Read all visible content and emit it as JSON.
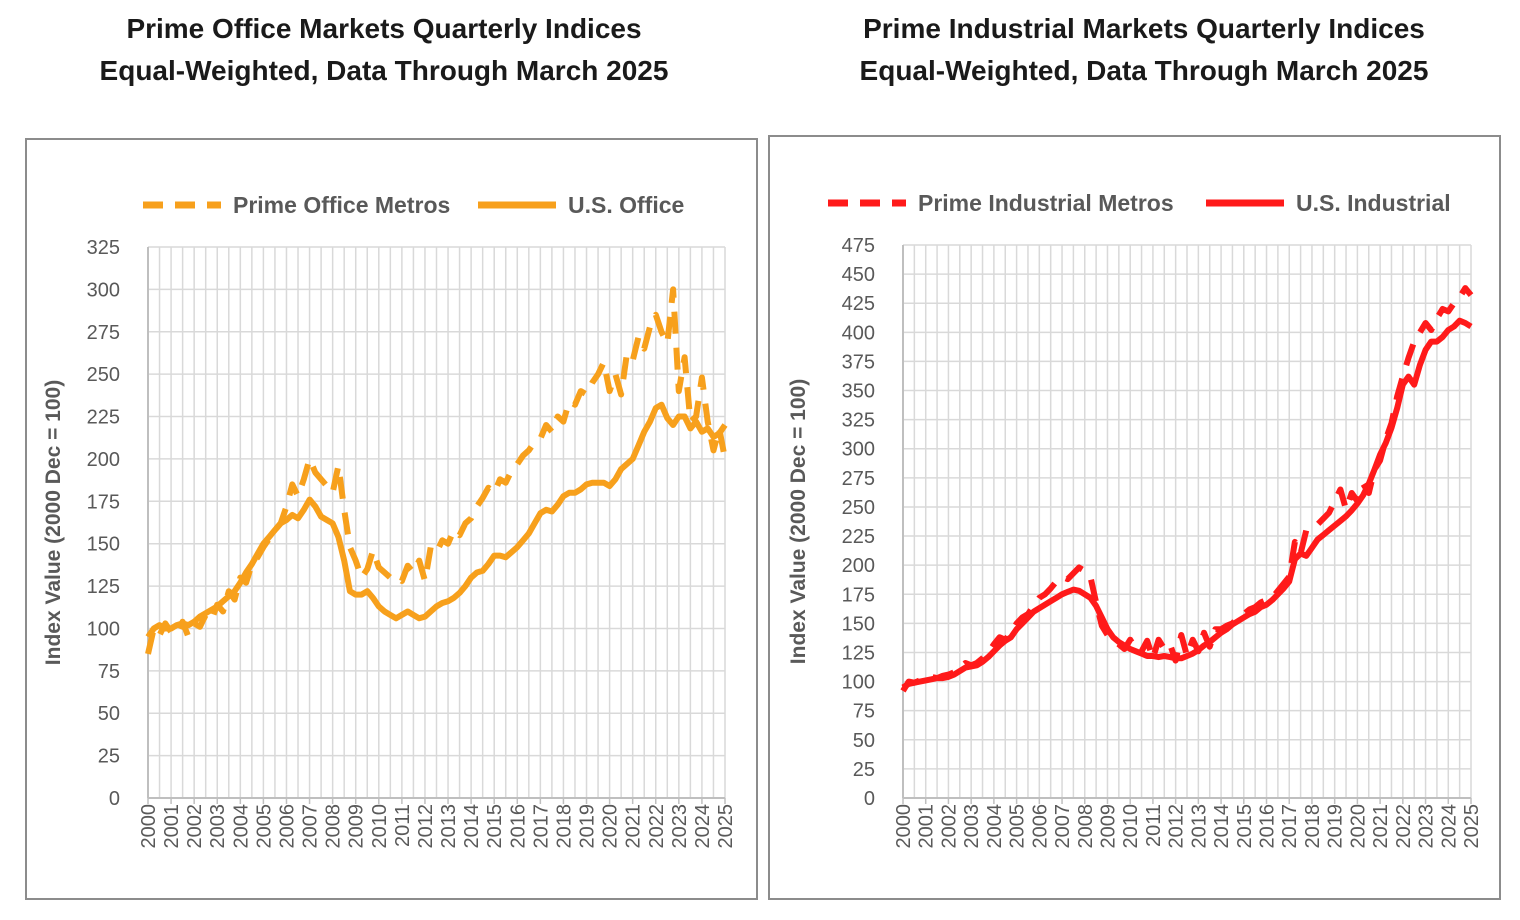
{
  "chart_data": [
    {
      "type": "line",
      "title": "Prime Office Markets Quarterly Indices",
      "subtitle": "Equal-Weighted, Data Through March 2025",
      "xlabel": "",
      "ylabel": "Index Value (2000 Dec = 100)",
      "ylim": [
        0,
        325
      ],
      "ytick_step": 25,
      "xlim": [
        2000,
        2025
      ],
      "x_ticks": [
        "2000",
        "2001",
        "2002",
        "2003",
        "2004",
        "2005",
        "2006",
        "2007",
        "2008",
        "2009",
        "2010",
        "2011",
        "2012",
        "2013",
        "2014",
        "2015",
        "2016",
        "2017",
        "2018",
        "2019",
        "2020",
        "2021",
        "2022",
        "2023",
        "2024",
        "2025"
      ],
      "grid": true,
      "legend_position": "top",
      "series": [
        {
          "name": "Prime Office Metros",
          "color": "#F7A01C",
          "style": "dashed",
          "x": [
            2000.0,
            2000.25,
            2000.5,
            2000.75,
            2001.0,
            2001.25,
            2001.5,
            2001.75,
            2002.0,
            2002.25,
            2002.5,
            2002.75,
            2003.0,
            2003.25,
            2003.5,
            2003.75,
            2004.0,
            2004.25,
            2004.5,
            2004.75,
            2005.0,
            2005.25,
            2005.5,
            2005.75,
            2006.0,
            2006.25,
            2006.5,
            2006.75,
            2007.0,
            2007.25,
            2007.5,
            2007.75,
            2008.0,
            2008.25,
            2008.5,
            2008.75,
            2009.0,
            2009.25,
            2009.5,
            2009.75,
            2010.0,
            2010.25,
            2010.5,
            2010.75,
            2011.0,
            2011.25,
            2011.5,
            2011.75,
            2012.0,
            2012.25,
            2012.5,
            2012.75,
            2013.0,
            2013.25,
            2013.5,
            2013.75,
            2014.0,
            2014.25,
            2014.5,
            2014.75,
            2015.0,
            2015.25,
            2015.5,
            2015.75,
            2016.0,
            2016.25,
            2016.5,
            2016.75,
            2017.0,
            2017.25,
            2017.5,
            2017.75,
            2018.0,
            2018.25,
            2018.5,
            2018.75,
            2019.0,
            2019.25,
            2019.5,
            2019.75,
            2020.0,
            2020.25,
            2020.5,
            2020.75,
            2021.0,
            2021.25,
            2021.5,
            2021.75,
            2022.0,
            2022.25,
            2022.5,
            2022.75,
            2023.0,
            2023.25,
            2023.5,
            2023.75,
            2024.0,
            2024.25,
            2024.5,
            2024.75,
            2025.0
          ],
          "values": [
            85,
            100,
            96,
            103,
            98,
            96,
            104,
            95,
            103,
            101,
            108,
            105,
            114,
            110,
            122,
            117,
            130,
            127,
            138,
            142,
            148,
            153,
            158,
            162,
            172,
            185,
            178,
            188,
            200,
            192,
            188,
            184,
            180,
            196,
            170,
            148,
            140,
            130,
            135,
            146,
            136,
            133,
            130,
            131,
            128,
            137,
            133,
            140,
            128,
            148,
            145,
            152,
            150,
            158,
            155,
            162,
            165,
            172,
            177,
            183,
            180,
            188,
            186,
            193,
            197,
            202,
            205,
            210,
            212,
            220,
            216,
            225,
            222,
            234,
            232,
            240,
            238,
            245,
            250,
            257,
            240,
            250,
            238,
            262,
            258,
            272,
            265,
            278,
            285,
            275,
            268,
            300,
            240,
            260,
            222,
            225,
            248,
            222,
            205,
            218,
            200
          ]
        },
        {
          "name": "U.S. Office",
          "color": "#F7A01C",
          "style": "solid",
          "x": [
            2000.0,
            2000.25,
            2000.5,
            2000.75,
            2001.0,
            2001.25,
            2001.5,
            2001.75,
            2002.0,
            2002.25,
            2002.5,
            2002.75,
            2003.0,
            2003.25,
            2003.5,
            2003.75,
            2004.0,
            2004.25,
            2004.5,
            2004.75,
            2005.0,
            2005.25,
            2005.5,
            2005.75,
            2006.0,
            2006.25,
            2006.5,
            2006.75,
            2007.0,
            2007.25,
            2007.5,
            2007.75,
            2008.0,
            2008.25,
            2008.5,
            2008.75,
            2009.0,
            2009.25,
            2009.5,
            2009.75,
            2010.0,
            2010.25,
            2010.5,
            2010.75,
            2011.0,
            2011.25,
            2011.5,
            2011.75,
            2012.0,
            2012.25,
            2012.5,
            2012.75,
            2013.0,
            2013.25,
            2013.5,
            2013.75,
            2014.0,
            2014.25,
            2014.5,
            2014.75,
            2015.0,
            2015.25,
            2015.5,
            2015.75,
            2016.0,
            2016.25,
            2016.5,
            2016.75,
            2017.0,
            2017.25,
            2017.5,
            2017.75,
            2018.0,
            2018.25,
            2018.5,
            2018.75,
            2019.0,
            2019.25,
            2019.5,
            2019.75,
            2020.0,
            2020.25,
            2020.5,
            2020.75,
            2021.0,
            2021.25,
            2021.5,
            2021.75,
            2022.0,
            2022.25,
            2022.5,
            2022.75,
            2023.0,
            2023.25,
            2023.5,
            2023.75,
            2024.0,
            2024.25,
            2024.5,
            2024.75,
            2025.0
          ],
          "values": [
            95,
            100,
            102,
            100,
            100,
            102,
            103,
            102,
            104,
            107,
            109,
            111,
            113,
            116,
            119,
            122,
            127,
            133,
            138,
            144,
            150,
            154,
            158,
            162,
            164,
            167,
            165,
            170,
            176,
            172,
            166,
            164,
            162,
            154,
            140,
            122,
            120,
            120,
            122,
            118,
            113,
            110,
            108,
            106,
            108,
            110,
            108,
            106,
            107,
            110,
            113,
            115,
            116,
            118,
            121,
            125,
            130,
            133,
            134,
            138,
            143,
            143,
            142,
            145,
            148,
            152,
            156,
            162,
            168,
            170,
            169,
            173,
            178,
            180,
            180,
            182,
            185,
            186,
            186,
            186,
            184,
            188,
            194,
            197,
            200,
            208,
            216,
            222,
            230,
            232,
            224,
            220,
            225,
            225,
            218,
            222,
            216,
            218,
            213,
            215,
            220
          ]
        }
      ]
    },
    {
      "type": "line",
      "title": "Prime Industrial Markets Quarterly Indices",
      "subtitle": "Equal-Weighted, Data Through March 2025",
      "xlabel": "",
      "ylabel": "Index Value (2000 Dec = 100)",
      "ylim": [
        0,
        475
      ],
      "ytick_step": 25,
      "xlim": [
        2000,
        2025
      ],
      "x_ticks": [
        "2000",
        "2001",
        "2002",
        "2003",
        "2004",
        "2005",
        "2006",
        "2007",
        "2008",
        "2009",
        "2010",
        "2011",
        "2012",
        "2013",
        "2014",
        "2015",
        "2016",
        "2017",
        "2018",
        "2019",
        "2020",
        "2021",
        "2022",
        "2023",
        "2024",
        "2025"
      ],
      "grid": true,
      "legend_position": "top",
      "series": [
        {
          "name": "Prime Industrial Metros",
          "color": "#FF1A1A",
          "style": "dashed",
          "x": [
            2000.0,
            2000.25,
            2000.5,
            2000.75,
            2001.0,
            2001.25,
            2001.5,
            2001.75,
            2002.0,
            2002.25,
            2002.5,
            2002.75,
            2003.0,
            2003.25,
            2003.5,
            2003.75,
            2004.0,
            2004.25,
            2004.5,
            2004.75,
            2005.0,
            2005.25,
            2005.5,
            2005.75,
            2006.0,
            2006.25,
            2006.5,
            2006.75,
            2007.0,
            2007.25,
            2007.5,
            2007.75,
            2008.0,
            2008.25,
            2008.5,
            2008.75,
            2009.0,
            2009.25,
            2009.5,
            2009.75,
            2010.0,
            2010.25,
            2010.5,
            2010.75,
            2011.0,
            2011.25,
            2011.5,
            2011.75,
            2012.0,
            2012.25,
            2012.5,
            2012.75,
            2013.0,
            2013.25,
            2013.5,
            2013.75,
            2014.0,
            2014.25,
            2014.5,
            2014.75,
            2015.0,
            2015.25,
            2015.5,
            2015.75,
            2016.0,
            2016.25,
            2016.5,
            2016.75,
            2017.0,
            2017.25,
            2017.5,
            2017.75,
            2018.0,
            2018.25,
            2018.5,
            2018.75,
            2019.0,
            2019.25,
            2019.5,
            2019.75,
            2020.0,
            2020.25,
            2020.5,
            2020.75,
            2021.0,
            2021.25,
            2021.5,
            2021.75,
            2022.0,
            2022.25,
            2022.5,
            2022.75,
            2023.0,
            2023.25,
            2023.5,
            2023.75,
            2024.0,
            2024.25,
            2024.5,
            2024.75,
            2025.0
          ],
          "values": [
            92,
            100,
            99,
            101,
            102,
            104,
            103,
            105,
            106,
            108,
            112,
            116,
            114,
            116,
            120,
            125,
            132,
            138,
            136,
            142,
            150,
            155,
            158,
            165,
            172,
            175,
            180,
            186,
            190,
            188,
            193,
            198,
            195,
            190,
            168,
            148,
            140,
            135,
            132,
            128,
            136,
            128,
            126,
            135,
            120,
            136,
            128,
            132,
            118,
            140,
            122,
            136,
            126,
            142,
            130,
            145,
            145,
            148,
            150,
            155,
            158,
            162,
            164,
            168,
            170,
            172,
            178,
            184,
            190,
            220,
            210,
            230,
            232,
            235,
            240,
            245,
            255,
            265,
            248,
            262,
            255,
            270,
            262,
            282,
            290,
            308,
            322,
            345,
            362,
            378,
            392,
            400,
            408,
            402,
            412,
            420,
            418,
            425,
            430,
            438,
            432
          ]
        },
        {
          "name": "U.S. Industrial",
          "color": "#FF1A1A",
          "style": "solid",
          "x": [
            2000.0,
            2000.25,
            2000.5,
            2000.75,
            2001.0,
            2001.25,
            2001.5,
            2001.75,
            2002.0,
            2002.25,
            2002.5,
            2002.75,
            2003.0,
            2003.25,
            2003.5,
            2003.75,
            2004.0,
            2004.25,
            2004.5,
            2004.75,
            2005.0,
            2005.25,
            2005.5,
            2005.75,
            2006.0,
            2006.25,
            2006.5,
            2006.75,
            2007.0,
            2007.25,
            2007.5,
            2007.75,
            2008.0,
            2008.25,
            2008.5,
            2008.75,
            2009.0,
            2009.25,
            2009.5,
            2009.75,
            2010.0,
            2010.25,
            2010.5,
            2010.75,
            2011.0,
            2011.25,
            2011.5,
            2011.75,
            2012.0,
            2012.25,
            2012.5,
            2012.75,
            2013.0,
            2013.25,
            2013.5,
            2013.75,
            2014.0,
            2014.25,
            2014.5,
            2014.75,
            2015.0,
            2015.25,
            2015.5,
            2015.75,
            2016.0,
            2016.25,
            2016.5,
            2016.75,
            2017.0,
            2017.25,
            2017.5,
            2017.75,
            2018.0,
            2018.25,
            2018.5,
            2018.75,
            2019.0,
            2019.25,
            2019.5,
            2019.75,
            2020.0,
            2020.25,
            2020.5,
            2020.75,
            2021.0,
            2021.25,
            2021.5,
            2021.75,
            2022.0,
            2022.25,
            2022.5,
            2022.75,
            2023.0,
            2023.25,
            2023.5,
            2023.75,
            2024.0,
            2024.25,
            2024.5,
            2024.75,
            2025.0
          ],
          "values": [
            95,
            98,
            99,
            100,
            101,
            102,
            103,
            103,
            104,
            106,
            109,
            112,
            113,
            114,
            117,
            121,
            126,
            131,
            135,
            138,
            145,
            150,
            155,
            160,
            163,
            166,
            169,
            172,
            175,
            177,
            179,
            178,
            175,
            172,
            165,
            155,
            145,
            138,
            134,
            131,
            128,
            126,
            124,
            122,
            122,
            121,
            122,
            121,
            120,
            120,
            122,
            124,
            127,
            131,
            134,
            138,
            142,
            145,
            149,
            152,
            155,
            158,
            160,
            164,
            166,
            170,
            175,
            180,
            186,
            205,
            210,
            208,
            215,
            222,
            226,
            230,
            234,
            238,
            242,
            247,
            253,
            260,
            270,
            282,
            295,
            305,
            318,
            335,
            355,
            362,
            355,
            372,
            385,
            392,
            392,
            396,
            402,
            405,
            410,
            408,
            405
          ]
        }
      ]
    }
  ]
}
